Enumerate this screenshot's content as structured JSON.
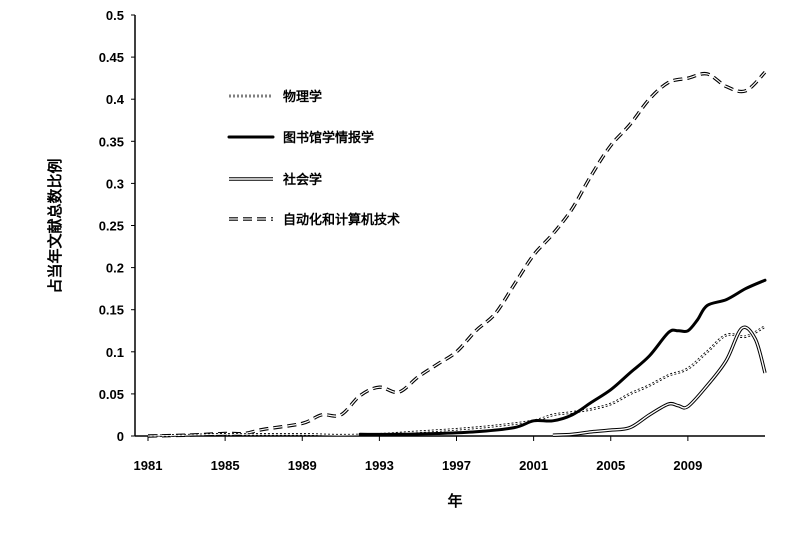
{
  "chart_data": {
    "type": "line",
    "xlabel": "年",
    "ylabel": "占当年文献总数比例",
    "xlim": [
      1981,
      2013
    ],
    "ylim": [
      0,
      0.5
    ],
    "x_ticks": [
      "1981",
      "1985",
      "1989",
      "1993",
      "1997",
      "2001",
      "2005",
      "2009"
    ],
    "y_ticks": [
      "0",
      "0.05",
      "0.1",
      "0.15",
      "0.2",
      "0.25",
      "0.3",
      "0.35",
      "0.4",
      "0.45",
      "0.5"
    ],
    "grid": false,
    "legend_position": "top-left",
    "series": [
      {
        "name": "物理学",
        "style": "dotted-double",
        "x": [
          1981,
          1983,
          1985,
          1987,
          1989,
          1991,
          1993,
          1995,
          1997,
          1999,
          2001,
          2002,
          2003,
          2004,
          2005,
          2006,
          2007,
          2008,
          2009,
          2010,
          2011,
          2012,
          2013
        ],
        "y": [
          0.0,
          0.001,
          0.002,
          0.002,
          0.002,
          0.001,
          0.002,
          0.005,
          0.008,
          0.012,
          0.018,
          0.025,
          0.028,
          0.032,
          0.038,
          0.05,
          0.06,
          0.072,
          0.08,
          0.1,
          0.12,
          0.118,
          0.13
        ]
      },
      {
        "name": "图书馆学情报学",
        "style": "solid-thick",
        "x": [
          1992,
          1994,
          1996,
          1998,
          2000,
          2001,
          2002,
          2003,
          2004,
          2005,
          2006,
          2007,
          2008,
          2008.5,
          2009,
          2009.5,
          2010,
          2011,
          2012,
          2013
        ],
        "y": [
          0.002,
          0.002,
          0.003,
          0.005,
          0.01,
          0.018,
          0.018,
          0.025,
          0.04,
          0.055,
          0.075,
          0.095,
          0.123,
          0.125,
          0.125,
          0.138,
          0.155,
          0.162,
          0.175,
          0.185
        ]
      },
      {
        "name": "社会学",
        "style": "double-line",
        "x": [
          2002,
          2003,
          2004,
          2005,
          2006,
          2007,
          2008,
          2008.5,
          2009,
          2010,
          2011,
          2011.8,
          2012.5,
          2013
        ],
        "y": [
          0.001,
          0.002,
          0.005,
          0.007,
          0.01,
          0.025,
          0.038,
          0.036,
          0.035,
          0.06,
          0.09,
          0.128,
          0.115,
          0.075
        ]
      },
      {
        "name": "自动化和计算机技术",
        "style": "dashed-double",
        "x": [
          1981,
          1983,
          1985,
          1986,
          1987,
          1989,
          1990,
          1991,
          1992,
          1993,
          1994,
          1995,
          1996,
          1997,
          1998,
          1999,
          2000,
          2001,
          2002,
          2003,
          2004,
          2005,
          2006,
          2007,
          2008,
          2009,
          2010,
          2011,
          2012,
          2013
        ],
        "y": [
          0.0,
          0.001,
          0.003,
          0.003,
          0.008,
          0.015,
          0.025,
          0.025,
          0.048,
          0.058,
          0.052,
          0.07,
          0.085,
          0.1,
          0.125,
          0.145,
          0.18,
          0.215,
          0.24,
          0.27,
          0.31,
          0.345,
          0.37,
          0.4,
          0.42,
          0.425,
          0.43,
          0.415,
          0.41,
          0.432
        ]
      }
    ]
  }
}
